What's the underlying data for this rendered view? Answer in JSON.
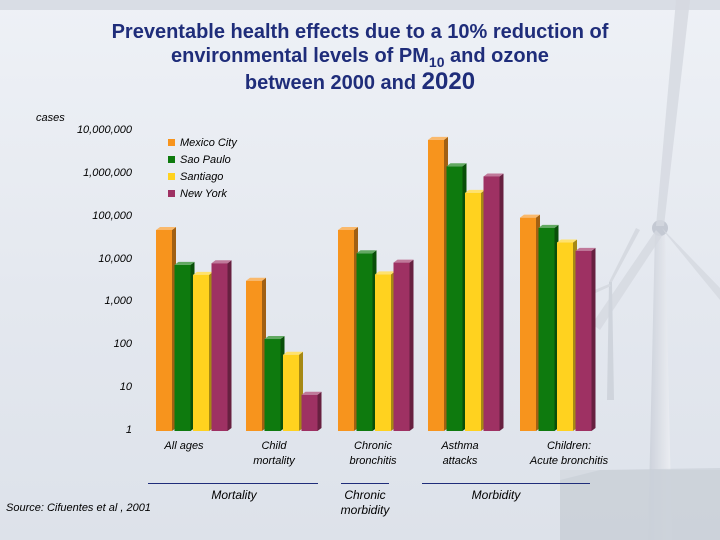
{
  "title": {
    "line1": "Preventable health effects due to a 10% reduction of",
    "line2_pre": "environmental levels of PM",
    "line2_sub": "10",
    "line2_post": " and ozone",
    "line3_pre": "between 2000 and ",
    "line3_year": "2020"
  },
  "source": "Source: Cifuentes et al , 2001",
  "colors": {
    "Mexico City": "#f7941d",
    "Sao Paulo": "#0e7a0e",
    "Santiago": "#ffd21f",
    "New York": "#9e3163"
  },
  "chart_data": {
    "type": "bar",
    "title": "Preventable health effects due to a 10% reduction of environmental levels of PM10 and ozone between 2000 and 2020",
    "ylabel": "cases",
    "yscale": "log",
    "ylim": [
      1,
      10000000
    ],
    "yticks": [
      "10,000,000",
      "1,000,000",
      "100,000",
      "10,000",
      "1,000",
      "100",
      "10",
      "1"
    ],
    "categories": [
      "All ages",
      "Child mortality",
      "Chronic bronchitis",
      "Asthma attacks",
      "Children: Acute bronchitis"
    ],
    "category_lines": [
      [
        "All ages"
      ],
      [
        "Child",
        "mortality"
      ],
      [
        "Chronic",
        "bronchitis"
      ],
      [
        "Asthma",
        "attacks"
      ],
      [
        "Children:",
        "Acute bronchitis"
      ]
    ],
    "groups": [
      {
        "label": "Mortality",
        "lines": [
          "Mortality"
        ]
      },
      {
        "label": "Chronic morbidity",
        "lines": [
          "Chronic",
          "morbidity"
        ]
      },
      {
        "label": "Morbidity",
        "lines": [
          "Morbidity"
        ]
      }
    ],
    "series": [
      {
        "name": "Mexico City",
        "values": [
          49000,
          3200,
          49000,
          6200000,
          95000
        ]
      },
      {
        "name": "Sao Paulo",
        "values": [
          7500,
          140,
          14000,
          1500000,
          55000
        ]
      },
      {
        "name": "Santiago",
        "values": [
          4400,
          60,
          4500,
          360000,
          25000
        ]
      },
      {
        "name": "New York",
        "values": [
          8200,
          7,
          8500,
          870000,
          16000
        ]
      }
    ],
    "legend_position": "top-left"
  }
}
